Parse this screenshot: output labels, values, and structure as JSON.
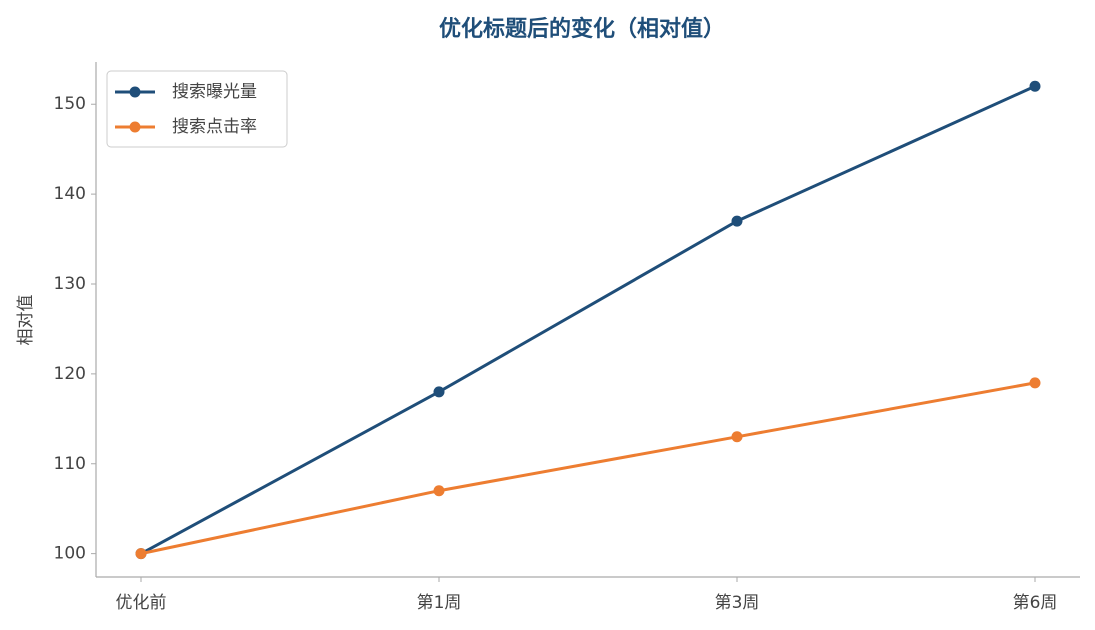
{
  "chart_data": {
    "type": "line",
    "title": "优化标题后的变化（相对值）",
    "y_label": "相对值",
    "categories": [
      "优化前",
      "第1周",
      "第3周",
      "第6周"
    ],
    "series": [
      {
        "name": "搜索曝光量",
        "color": "#1f4e79",
        "values": [
          100,
          118,
          137,
          152
        ]
      },
      {
        "name": "搜索点击率",
        "color": "#ed7d31",
        "values": [
          100,
          107,
          113,
          119
        ]
      }
    ],
    "ylim": [
      97.4,
      154.7
    ],
    "yticks": [
      100,
      110,
      120,
      130,
      140,
      150
    ],
    "grid": false,
    "legend": "upper left"
  }
}
